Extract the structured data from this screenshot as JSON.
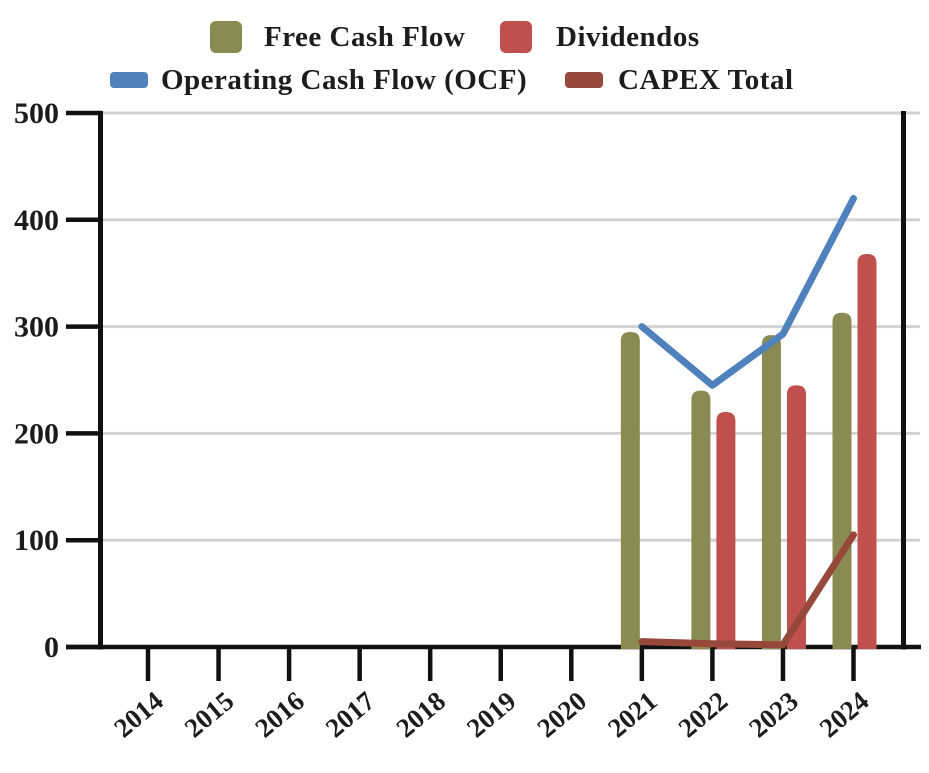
{
  "legend": {
    "items": [
      {
        "label": "Free Cash Flow",
        "color": "#8A8B52",
        "marker": "bar"
      },
      {
        "label": "Dividendos",
        "color": "#C0504D",
        "marker": "bar"
      },
      {
        "label": "Operating Cash Flow (OCF)",
        "color": "#4F81BD",
        "marker": "line"
      },
      {
        "label": "CAPEX Total",
        "color": "#96493B",
        "marker": "line"
      }
    ]
  },
  "colors": {
    "grid": "#d3d3d3",
    "axis": "#111111",
    "text": "#1c1c1c"
  },
  "chart_data": {
    "type": "bar+line",
    "title": "",
    "xlabel": "",
    "ylabel": "",
    "categories": [
      "2014",
      "2015",
      "2016",
      "2017",
      "2018",
      "2019",
      "2020",
      "2021",
      "2022",
      "2023",
      "2024"
    ],
    "series": [
      {
        "name": "Free Cash Flow",
        "type": "bar",
        "color": "#8A8B52",
        "values": [
          null,
          null,
          null,
          null,
          null,
          null,
          null,
          295,
          240,
          292,
          313
        ]
      },
      {
        "name": "Dividendos",
        "type": "bar",
        "color": "#C0504D",
        "values": [
          null,
          null,
          null,
          null,
          null,
          null,
          null,
          null,
          220,
          245,
          368
        ]
      },
      {
        "name": "Operating Cash Flow (OCF)",
        "type": "line",
        "color": "#4F81BD",
        "values": [
          null,
          null,
          null,
          null,
          null,
          null,
          null,
          300,
          245,
          293,
          420
        ]
      },
      {
        "name": "CAPEX Total",
        "type": "line",
        "color": "#96493B",
        "values": [
          null,
          null,
          null,
          null,
          null,
          null,
          null,
          5,
          3,
          2,
          105
        ]
      }
    ],
    "ylim": [
      0,
      500
    ],
    "yticks": [
      0,
      100,
      200,
      300,
      400,
      500
    ],
    "grid": true,
    "legend_position": "top"
  }
}
